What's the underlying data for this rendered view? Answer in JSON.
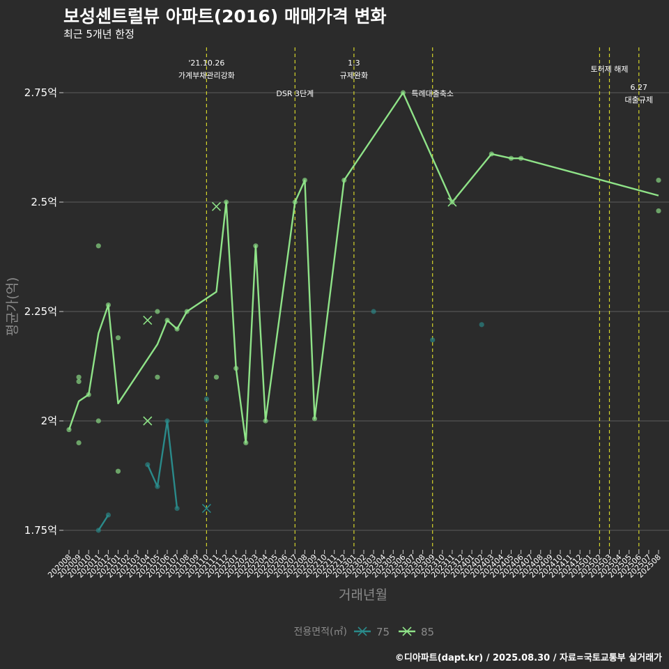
{
  "title": "보성센트럴뷰 아파트(2016) 매매가격 변화",
  "subtitle": "최근 5개년 한정",
  "caption": "©디아파트(dapt.kr) / 2025.08.30 / 자료=국토교통부 실거래가",
  "chart_data": {
    "type": "line",
    "xlabel": "거래년월",
    "ylabel": "평균가(억)",
    "ylim": [
      1.7,
      2.85
    ],
    "yticks": [
      1.75,
      2.0,
      2.25,
      2.5,
      2.75
    ],
    "ytick_labels": [
      "1.75억",
      "2억",
      "2.25억",
      "2.5억",
      "2.75억"
    ],
    "x_categories": [
      "202008",
      "202009",
      "202010",
      "202011",
      "202012",
      "202101",
      "202102",
      "202103",
      "202104",
      "202105",
      "202106",
      "202107",
      "202108",
      "202109",
      "202110",
      "202111",
      "202112",
      "202201",
      "202202",
      "202203",
      "202204",
      "202205",
      "202206",
      "202207",
      "202208",
      "202209",
      "202210",
      "202211",
      "202212",
      "202301",
      "202302",
      "202303",
      "202304",
      "202305",
      "202306",
      "202307",
      "202308",
      "202309",
      "202310",
      "202311",
      "202312",
      "202401",
      "202402",
      "202403",
      "202404",
      "202405",
      "202406",
      "202407",
      "202408",
      "202409",
      "202410",
      "202411",
      "202412",
      "202501",
      "202502",
      "202503",
      "202504",
      "202505",
      "202506",
      "202507",
      "202508"
    ],
    "legend_title": "전용면적(㎡)",
    "series": [
      {
        "name": "75",
        "color": "#2a8a8a",
        "line_segments": [
          [
            [
              "202011",
              1.75
            ],
            [
              "202012",
              1.785
            ]
          ],
          [
            [
              "202104",
              1.9
            ],
            [
              "202105",
              1.85
            ],
            [
              "202106",
              2.0
            ],
            [
              "202107",
              1.8
            ]
          ]
        ],
        "points": [
          [
            "202011",
            1.75
          ],
          [
            "202012",
            1.785
          ],
          [
            "202104",
            1.9
          ],
          [
            "202105",
            1.85
          ],
          [
            "202106",
            2.0
          ],
          [
            "202107",
            1.8
          ],
          [
            "202110",
            2.05
          ],
          [
            "202110",
            2.0
          ],
          [
            "202303",
            2.25
          ],
          [
            "202309",
            2.185
          ],
          [
            "202402",
            2.22
          ]
        ],
        "x_markers": [
          [
            "202110",
            1.8
          ]
        ]
      },
      {
        "name": "85",
        "color": "#8fe388",
        "line": [
          [
            "202008",
            1.98
          ],
          [
            "202009",
            2.045
          ],
          [
            "202010",
            2.06
          ],
          [
            "202011",
            2.2
          ],
          [
            "202012",
            2.265
          ],
          [
            "202101",
            2.04
          ],
          [
            "202105",
            2.175
          ],
          [
            "202106",
            2.23
          ],
          [
            "202107",
            2.21
          ],
          [
            "202108",
            2.25
          ],
          [
            "202111",
            2.295
          ],
          [
            "202112",
            2.5
          ],
          [
            "202201",
            2.12
          ],
          [
            "202202",
            1.95
          ],
          [
            "202203",
            2.4
          ],
          [
            "202204",
            2.0
          ],
          [
            "202207",
            2.5
          ],
          [
            "202208",
            2.55
          ],
          [
            "202209",
            2.005
          ],
          [
            "202212",
            2.55
          ],
          [
            "202306",
            2.75
          ],
          [
            "202311",
            2.5
          ],
          [
            "202403",
            2.61
          ],
          [
            "202405",
            2.6
          ],
          [
            "202406",
            2.6
          ],
          [
            "202508",
            2.515
          ]
        ],
        "points": [
          [
            "202008",
            1.98
          ],
          [
            "202009",
            2.1
          ],
          [
            "202009",
            2.09
          ],
          [
            "202009",
            1.95
          ],
          [
            "202010",
            2.06
          ],
          [
            "202011",
            2.4
          ],
          [
            "202011",
            2.0
          ],
          [
            "202012",
            2.265
          ],
          [
            "202101",
            2.19
          ],
          [
            "202101",
            1.885
          ],
          [
            "202105",
            2.25
          ],
          [
            "202105",
            2.1
          ],
          [
            "202106",
            2.23
          ],
          [
            "202107",
            2.21
          ],
          [
            "202108",
            2.25
          ],
          [
            "202111",
            2.1
          ],
          [
            "202112",
            2.5
          ],
          [
            "202201",
            2.12
          ],
          [
            "202202",
            1.95
          ],
          [
            "202203",
            2.4
          ],
          [
            "202204",
            2.0
          ],
          [
            "202207",
            2.5
          ],
          [
            "202208",
            2.55
          ],
          [
            "202209",
            2.005
          ],
          [
            "202212",
            2.55
          ],
          [
            "202306",
            2.75
          ],
          [
            "202311",
            2.5
          ],
          [
            "202403",
            2.61
          ],
          [
            "202405",
            2.6
          ],
          [
            "202406",
            2.6
          ],
          [
            "202508",
            2.55
          ],
          [
            "202508",
            2.48
          ]
        ],
        "x_markers": [
          [
            "202104",
            2.23
          ],
          [
            "202104",
            2.0
          ],
          [
            "202111",
            2.49
          ],
          [
            "202311",
            2.5
          ]
        ]
      }
    ],
    "events": [
      {
        "x": "202110",
        "lines": [
          "'21.10.26",
          "가계부채관리강화"
        ],
        "pos": "top"
      },
      {
        "x": "202207",
        "lines": [
          "DSR 3단계"
        ],
        "pos": "mid"
      },
      {
        "x": "202301",
        "lines": [
          "1.3",
          "규제완화"
        ],
        "pos": "top"
      },
      {
        "x": "202309",
        "lines": [
          "특례대출축소"
        ],
        "pos": "mid"
      },
      {
        "x": "202502",
        "lines": [],
        "pos": "none"
      },
      {
        "x": "202503",
        "lines": [
          "토허제 해제"
        ],
        "pos": "topmid"
      },
      {
        "x": "202506",
        "lines": [
          "6.27",
          "대출규제"
        ],
        "pos": "low"
      }
    ]
  }
}
